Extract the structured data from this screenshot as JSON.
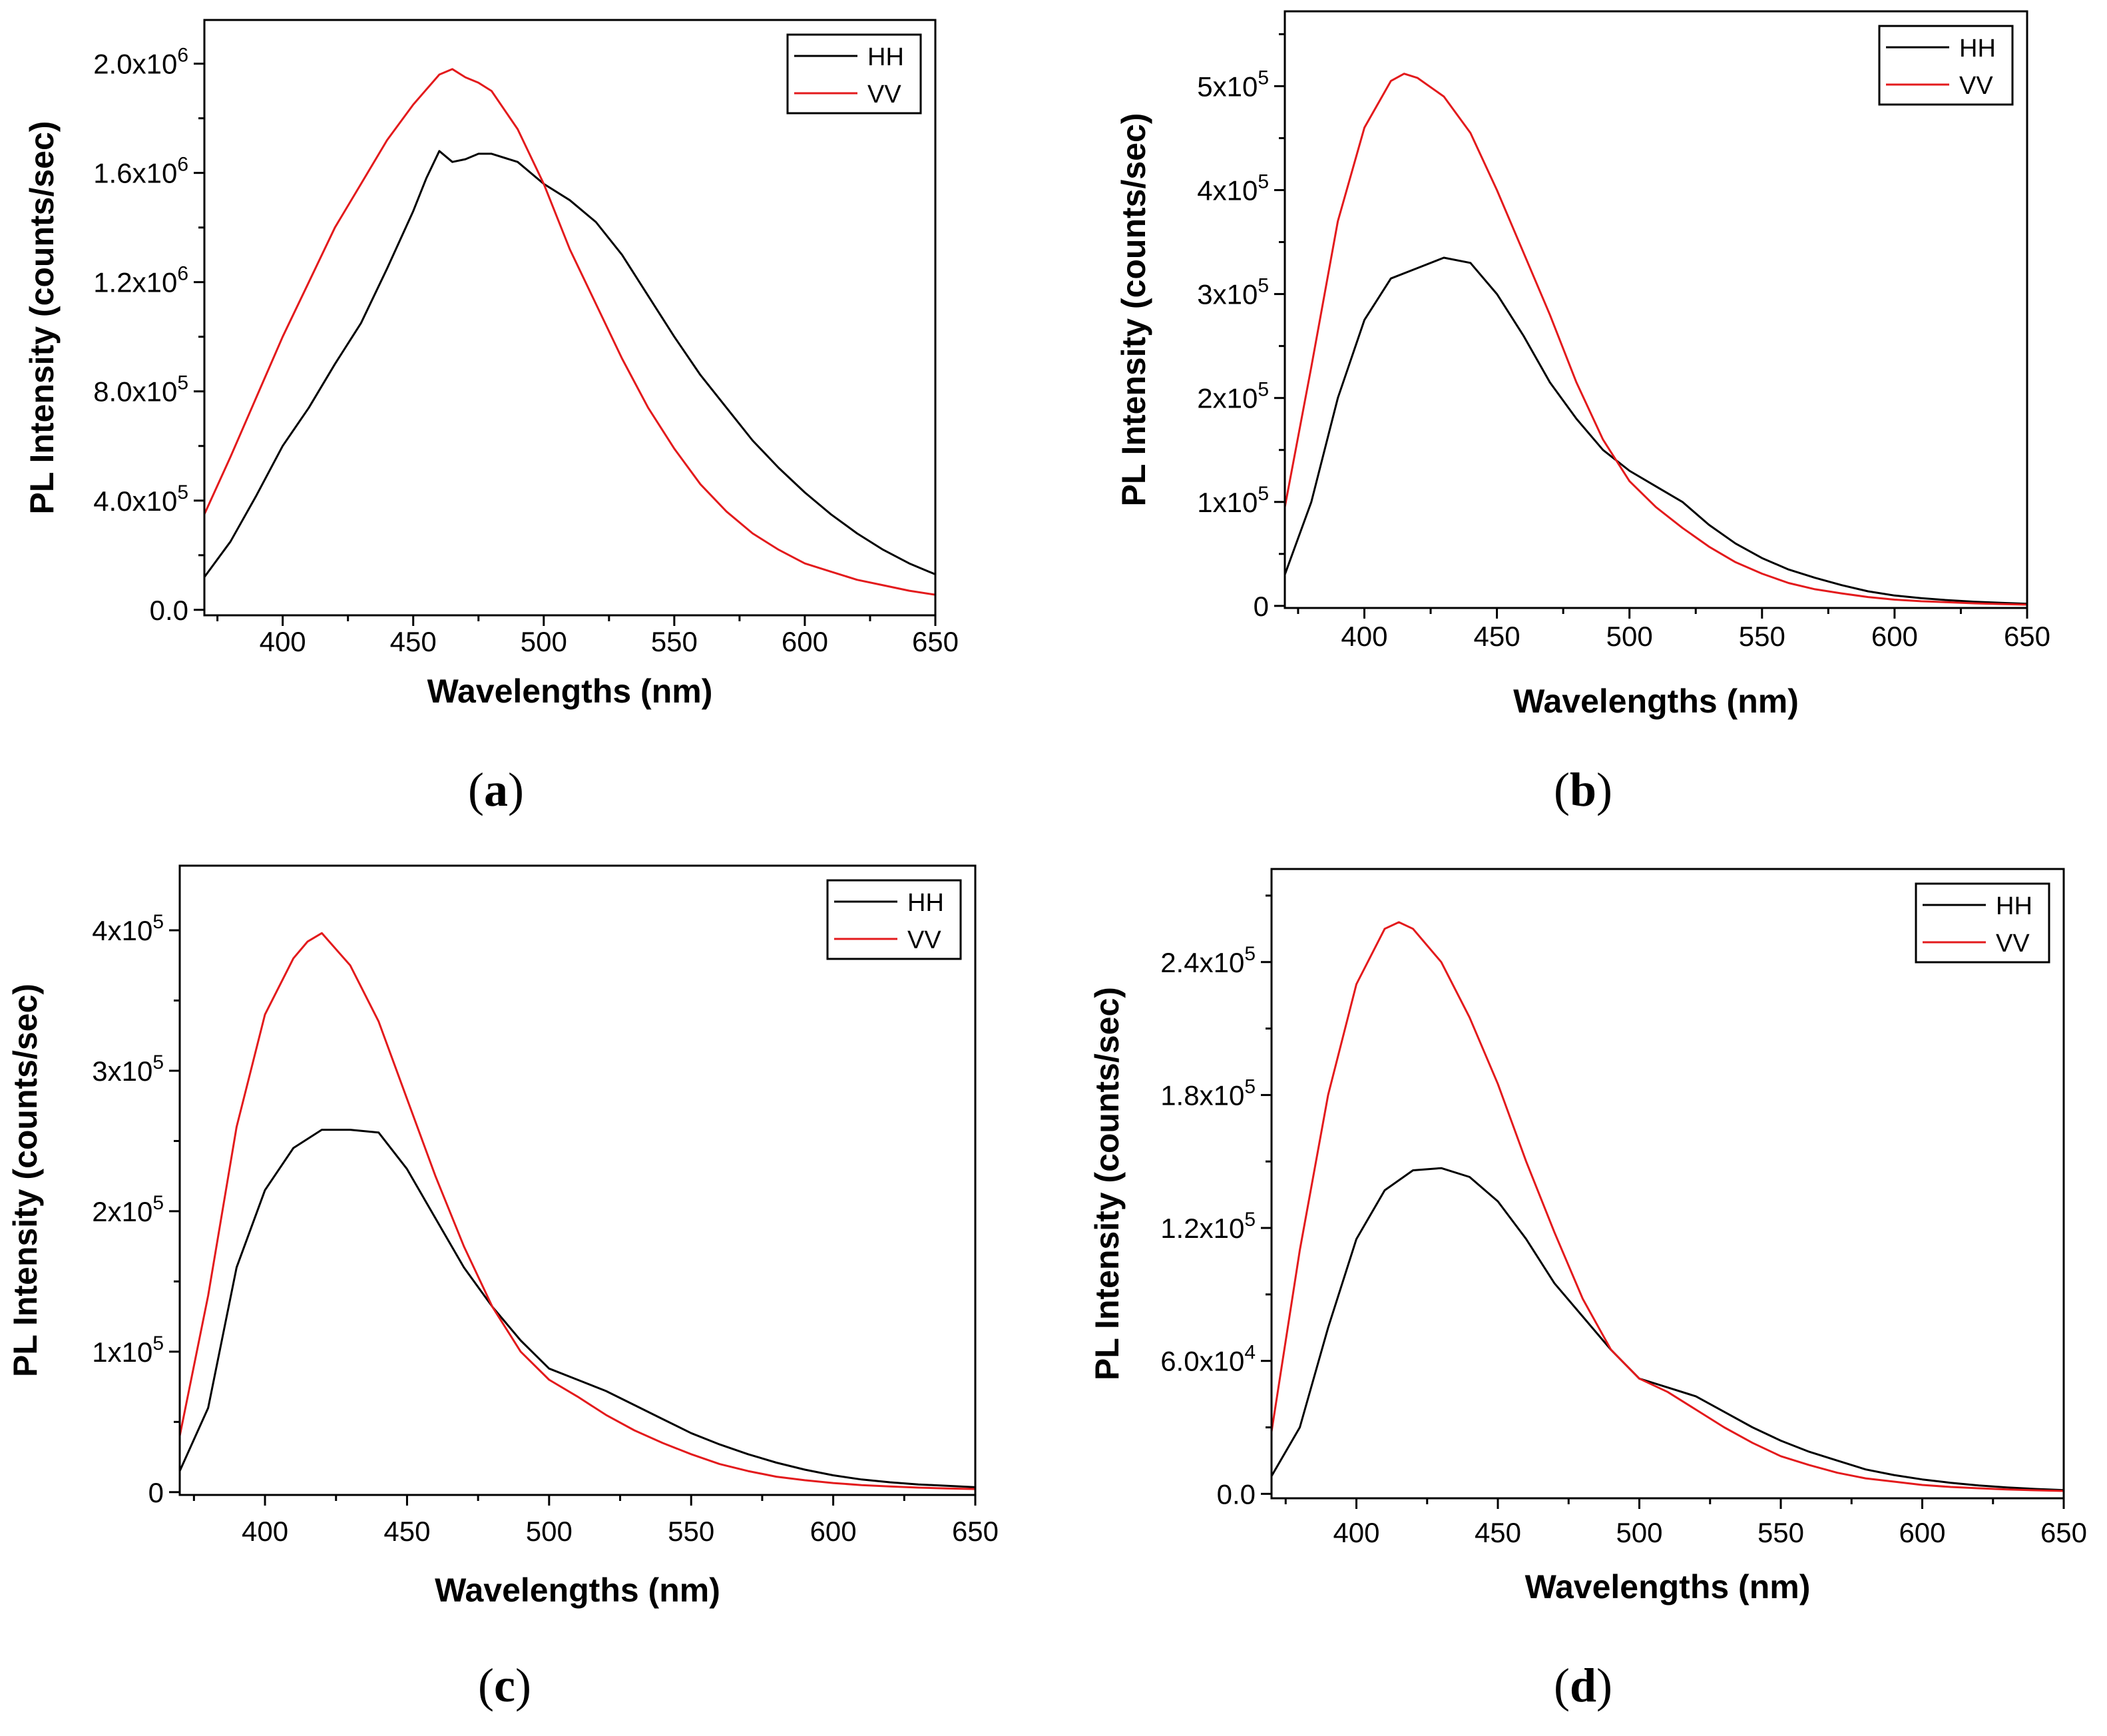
{
  "colors": {
    "HH": "#000000",
    "VV": "#e31a1c",
    "axis": "#000000"
  },
  "chart_data": [
    {
      "type": "line",
      "panel": "a",
      "caption": "(a)",
      "xlabel": "Wavelengths (nm)",
      "ylabel": "PL Intensity (counts/sec)",
      "xlim": [
        370,
        650
      ],
      "ylim": [
        -20000,
        2160000
      ],
      "xticks": [
        400,
        450,
        500,
        550,
        600,
        650
      ],
      "yticks": [
        {
          "value": 0,
          "base": "0.0",
          "exp": ""
        },
        {
          "value": 400000,
          "base": "4.0x10",
          "exp": "5"
        },
        {
          "value": 800000,
          "base": "8.0x10",
          "exp": "5"
        },
        {
          "value": 1200000,
          "base": "1.2x10",
          "exp": "6"
        },
        {
          "value": 1600000,
          "base": "1.6x10",
          "exp": "6"
        },
        {
          "value": 2000000,
          "base": "2.0x10",
          "exp": "6"
        }
      ],
      "legend": {
        "position": "top-right",
        "entries": [
          "HH",
          "VV"
        ]
      },
      "series": [
        {
          "name": "HH",
          "x": [
            370,
            380,
            390,
            400,
            410,
            420,
            430,
            440,
            450,
            455,
            460,
            465,
            470,
            475,
            480,
            490,
            500,
            510,
            520,
            530,
            540,
            550,
            560,
            570,
            580,
            590,
            600,
            610,
            620,
            630,
            640,
            650
          ],
          "y": [
            120000,
            250000,
            420000,
            600000,
            740000,
            900000,
            1050000,
            1250000,
            1460000,
            1580000,
            1680000,
            1640000,
            1650000,
            1670000,
            1670000,
            1640000,
            1560000,
            1500000,
            1420000,
            1300000,
            1150000,
            1000000,
            860000,
            740000,
            620000,
            520000,
            430000,
            350000,
            280000,
            220000,
            170000,
            130000
          ]
        },
        {
          "name": "VV",
          "x": [
            370,
            380,
            390,
            400,
            410,
            420,
            430,
            440,
            450,
            460,
            465,
            470,
            475,
            480,
            490,
            500,
            510,
            520,
            530,
            540,
            550,
            560,
            570,
            580,
            590,
            600,
            610,
            620,
            630,
            640,
            650
          ],
          "y": [
            350000,
            560000,
            780000,
            1000000,
            1200000,
            1400000,
            1560000,
            1720000,
            1850000,
            1960000,
            1980000,
            1950000,
            1930000,
            1900000,
            1760000,
            1560000,
            1320000,
            1120000,
            920000,
            740000,
            590000,
            460000,
            360000,
            280000,
            220000,
            170000,
            140000,
            110000,
            90000,
            70000,
            55000
          ]
        }
      ]
    },
    {
      "type": "line",
      "panel": "b",
      "caption": "(b)",
      "xlabel": "Wavelengths (nm)",
      "ylabel": "PL Intensity (counts/sec)",
      "xlim": [
        370,
        650
      ],
      "ylim": [
        -2000,
        572000
      ],
      "xticks": [
        400,
        450,
        500,
        550,
        600,
        650
      ],
      "yticks": [
        {
          "value": 0,
          "base": "0",
          "exp": ""
        },
        {
          "value": 100000,
          "base": "1x10",
          "exp": "5"
        },
        {
          "value": 200000,
          "base": "2x10",
          "exp": "5"
        },
        {
          "value": 300000,
          "base": "3x10",
          "exp": "5"
        },
        {
          "value": 400000,
          "base": "4x10",
          "exp": "5"
        },
        {
          "value": 500000,
          "base": "5x10",
          "exp": "5"
        }
      ],
      "legend": {
        "position": "top-right",
        "entries": [
          "HH",
          "VV"
        ]
      },
      "series": [
        {
          "name": "HH",
          "x": [
            370,
            380,
            390,
            400,
            410,
            420,
            430,
            440,
            450,
            460,
            470,
            480,
            490,
            500,
            510,
            520,
            530,
            540,
            550,
            560,
            570,
            580,
            590,
            600,
            610,
            620,
            630,
            640,
            650
          ],
          "y": [
            30000,
            100000,
            200000,
            275000,
            315000,
            325000,
            335000,
            330000,
            300000,
            260000,
            215000,
            180000,
            150000,
            130000,
            115000,
            100000,
            78000,
            60000,
            46000,
            35000,
            27000,
            20000,
            14000,
            10000,
            7500,
            5500,
            4000,
            3000,
            2000
          ]
        },
        {
          "name": "VV",
          "x": [
            370,
            380,
            390,
            400,
            410,
            415,
            420,
            430,
            440,
            450,
            460,
            470,
            480,
            490,
            500,
            510,
            520,
            530,
            540,
            550,
            560,
            570,
            580,
            590,
            600,
            610,
            620,
            630,
            640,
            650
          ],
          "y": [
            95000,
            230000,
            370000,
            460000,
            505000,
            512000,
            508000,
            490000,
            455000,
            400000,
            340000,
            280000,
            215000,
            160000,
            120000,
            95000,
            75000,
            57000,
            42000,
            31000,
            22000,
            16000,
            12000,
            8500,
            6000,
            4500,
            3500,
            2500,
            1800,
            1200
          ]
        }
      ]
    },
    {
      "type": "line",
      "panel": "c",
      "caption": "(c)",
      "xlabel": "Wavelengths (nm)",
      "ylabel": "PL Intensity (counts/sec)",
      "xlim": [
        370,
        650
      ],
      "ylim": [
        -2000,
        446000
      ],
      "xticks": [
        400,
        450,
        500,
        550,
        600,
        650
      ],
      "yticks": [
        {
          "value": 0,
          "base": "0",
          "exp": ""
        },
        {
          "value": 100000,
          "base": "1x10",
          "exp": "5"
        },
        {
          "value": 200000,
          "base": "2x10",
          "exp": "5"
        },
        {
          "value": 300000,
          "base": "3x10",
          "exp": "5"
        },
        {
          "value": 400000,
          "base": "4x10",
          "exp": "5"
        }
      ],
      "legend": {
        "position": "top-right",
        "entries": [
          "HH",
          "VV"
        ]
      },
      "series": [
        {
          "name": "HH",
          "x": [
            370,
            380,
            390,
            400,
            410,
            420,
            430,
            440,
            450,
            460,
            470,
            480,
            490,
            500,
            510,
            520,
            530,
            540,
            550,
            560,
            570,
            580,
            590,
            600,
            610,
            620,
            630,
            640,
            650
          ],
          "y": [
            15000,
            60000,
            160000,
            215000,
            245000,
            258000,
            258000,
            256000,
            230000,
            195000,
            160000,
            132000,
            108000,
            88000,
            80000,
            72000,
            62000,
            52000,
            42000,
            34000,
            27000,
            21000,
            16000,
            12000,
            9000,
            7000,
            5500,
            4500,
            3500
          ]
        },
        {
          "name": "VV",
          "x": [
            370,
            380,
            390,
            400,
            410,
            415,
            420,
            430,
            440,
            450,
            460,
            470,
            480,
            490,
            500,
            510,
            520,
            530,
            540,
            550,
            560,
            570,
            580,
            590,
            600,
            610,
            620,
            630,
            640,
            650
          ],
          "y": [
            40000,
            140000,
            260000,
            340000,
            380000,
            392000,
            398000,
            375000,
            335000,
            280000,
            225000,
            175000,
            132000,
            100000,
            80000,
            68000,
            55000,
            44000,
            35000,
            27000,
            20000,
            15000,
            11000,
            8500,
            6500,
            5000,
            4000,
            3200,
            2600,
            2200
          ]
        }
      ]
    },
    {
      "type": "line",
      "panel": "d",
      "caption": "(d)",
      "xlabel": "Wavelengths (nm)",
      "ylabel": "PL Intensity (counts/sec)",
      "xlim": [
        370,
        650
      ],
      "ylim": [
        -2000,
        282000
      ],
      "xticks": [
        400,
        450,
        500,
        550,
        600,
        650
      ],
      "yticks": [
        {
          "value": 0,
          "base": "0.0",
          "exp": ""
        },
        {
          "value": 60000,
          "base": "6.0x10",
          "exp": "4"
        },
        {
          "value": 120000,
          "base": "1.2x10",
          "exp": "5"
        },
        {
          "value": 180000,
          "base": "1.8x10",
          "exp": "5"
        },
        {
          "value": 240000,
          "base": "2.4x10",
          "exp": "5"
        }
      ],
      "legend": {
        "position": "top-right",
        "entries": [
          "HH",
          "VV"
        ]
      },
      "series": [
        {
          "name": "HH",
          "x": [
            370,
            380,
            390,
            400,
            410,
            420,
            430,
            440,
            450,
            460,
            470,
            480,
            490,
            500,
            510,
            520,
            530,
            540,
            550,
            560,
            570,
            580,
            590,
            600,
            610,
            620,
            630,
            640,
            650
          ],
          "y": [
            8000,
            30000,
            75000,
            115000,
            137000,
            146000,
            147000,
            143000,
            132000,
            115000,
            95000,
            80000,
            65000,
            52000,
            48000,
            44000,
            37000,
            30000,
            24000,
            19000,
            15000,
            11000,
            8500,
            6500,
            5000,
            3800,
            2900,
            2200,
            1700
          ]
        },
        {
          "name": "VV",
          "x": [
            370,
            380,
            390,
            400,
            410,
            415,
            420,
            430,
            440,
            450,
            460,
            470,
            480,
            490,
            500,
            510,
            520,
            530,
            540,
            550,
            560,
            570,
            580,
            590,
            600,
            610,
            620,
            630,
            640,
            650
          ],
          "y": [
            28000,
            110000,
            180000,
            230000,
            255000,
            258000,
            255000,
            240000,
            215000,
            185000,
            150000,
            118000,
            88000,
            65000,
            52000,
            46000,
            38000,
            30000,
            23000,
            17000,
            13000,
            9500,
            7000,
            5500,
            4000,
            3100,
            2500,
            2000,
            1600,
            1300
          ]
        }
      ]
    }
  ]
}
